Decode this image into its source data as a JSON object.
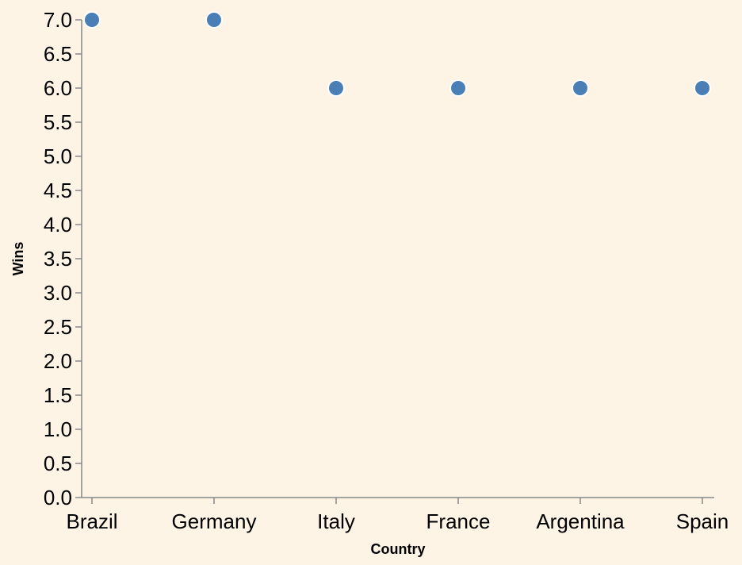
{
  "chart_data": {
    "type": "scatter",
    "title": "",
    "xlabel": "Country",
    "ylabel": "Wins",
    "categories": [
      "Brazil",
      "Germany",
      "Italy",
      "France",
      "Argentina",
      "Spain"
    ],
    "series": [
      {
        "values": [
          7,
          7,
          6,
          6,
          6,
          6
        ]
      }
    ],
    "ylim": [
      0,
      7
    ],
    "yticks": [
      "0.0",
      "0.5",
      "1.0",
      "1.5",
      "2.0",
      "2.5",
      "3.0",
      "3.5",
      "4.0",
      "4.5",
      "5.0",
      "5.5",
      "6.0",
      "6.5",
      "7.0"
    ],
    "grid": false,
    "legend": "none",
    "colors": {
      "background": "#fdf4e6",
      "point_fill": "#4a7fb5",
      "point_stroke": "#ffffff",
      "axis": "#888888"
    }
  }
}
